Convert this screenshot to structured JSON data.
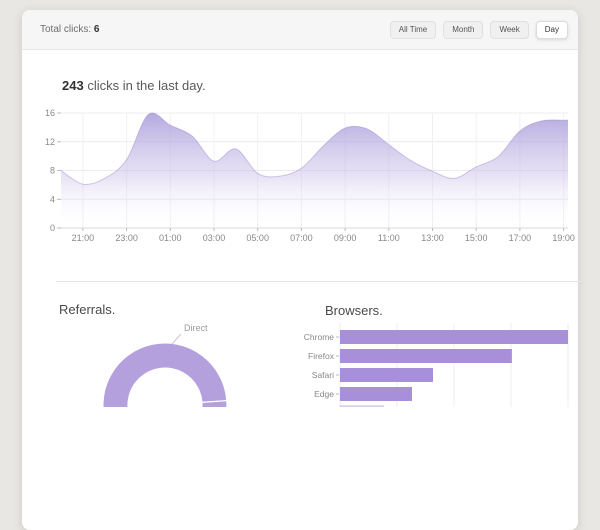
{
  "header": {
    "total_clicks_label": "Total clicks:",
    "total_clicks_value": "6",
    "filters": [
      {
        "label": "All Time",
        "active": false
      },
      {
        "label": "Month",
        "active": false
      },
      {
        "label": "Week",
        "active": false
      },
      {
        "label": "Day",
        "active": true
      }
    ]
  },
  "summary": {
    "count": "243",
    "rest": " clicks in the last day."
  },
  "sections": {
    "referrals_title": "Referrals.",
    "browsers_title": "Browsers."
  },
  "colors": {
    "area_fill_top": "#a294d6",
    "area_line": "#9a88cf",
    "donut": "#b3a0dd",
    "bar": "#a78fd9",
    "grid": "#ececec",
    "axis_text": "#888888",
    "page_background": "#e9e7e4",
    "card_header_background": "#f6f6f6"
  },
  "chart_data": [
    {
      "id": "clicks-area",
      "type": "area",
      "title": "243 clicks in the last day.",
      "hours": [
        "20:00",
        "21:00",
        "22:00",
        "23:00",
        "00:00",
        "01:00",
        "02:00",
        "03:00",
        "04:00",
        "05:00",
        "06:00",
        "07:00",
        "08:00",
        "09:00",
        "10:00",
        "11:00",
        "12:00",
        "13:00",
        "14:00",
        "15:00",
        "16:00",
        "17:00",
        "18:00",
        "19:00"
      ],
      "values": [
        8.0,
        6.1,
        6.9,
        9.5,
        15.8,
        14.3,
        12.8,
        9.3,
        11.0,
        7.6,
        7.2,
        8.3,
        11.4,
        13.9,
        13.8,
        11.6,
        9.4,
        7.9,
        6.9,
        8.5,
        9.9,
        13.5,
        14.9,
        15.0
      ],
      "x_tick_labels": [
        "21:00",
        "23:00",
        "01:00",
        "03:00",
        "05:00",
        "07:00",
        "09:00",
        "11:00",
        "13:00",
        "15:00",
        "17:00",
        "19:00"
      ],
      "y_ticks": [
        0,
        4,
        8,
        12,
        16
      ],
      "ylim": [
        0,
        16
      ],
      "grid": true,
      "legend": "none"
    },
    {
      "id": "referrals-donut",
      "type": "pie",
      "title": "Referrals.",
      "donut": true,
      "segments": [
        {
          "label": "Direct",
          "start_deg": 4,
          "end_deg": 200
        },
        {
          "label": "",
          "start_deg": 200,
          "end_deg": 300
        },
        {
          "label": "",
          "start_deg": 300,
          "end_deg": 364
        }
      ],
      "visible_label": "Direct"
    },
    {
      "id": "browsers-bar",
      "type": "bar",
      "title": "Browsers.",
      "orientation": "horizontal",
      "categories": [
        "Chrome",
        "Firefox",
        "Safari",
        "Edge"
      ],
      "values_percent_of_max": [
        100,
        75.4,
        40.8,
        31.6
      ],
      "partial_fifth_row_percent": 19,
      "grid": true
    }
  ]
}
